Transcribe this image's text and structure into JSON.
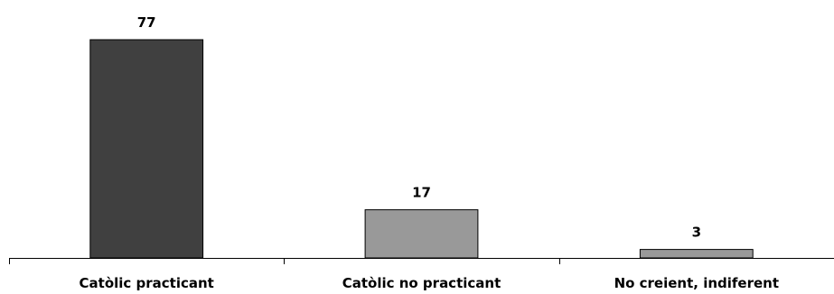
{
  "chart_data": {
    "type": "bar",
    "categories": [
      "Catòlic practicant",
      "Catòlic no practicant",
      "No creient, indiferent"
    ],
    "values": [
      77,
      17,
      3
    ],
    "bar_colors": [
      "#404040",
      "#999999",
      "#999999"
    ],
    "ylim": [
      0,
      77
    ],
    "grid": false,
    "legend": "none"
  }
}
